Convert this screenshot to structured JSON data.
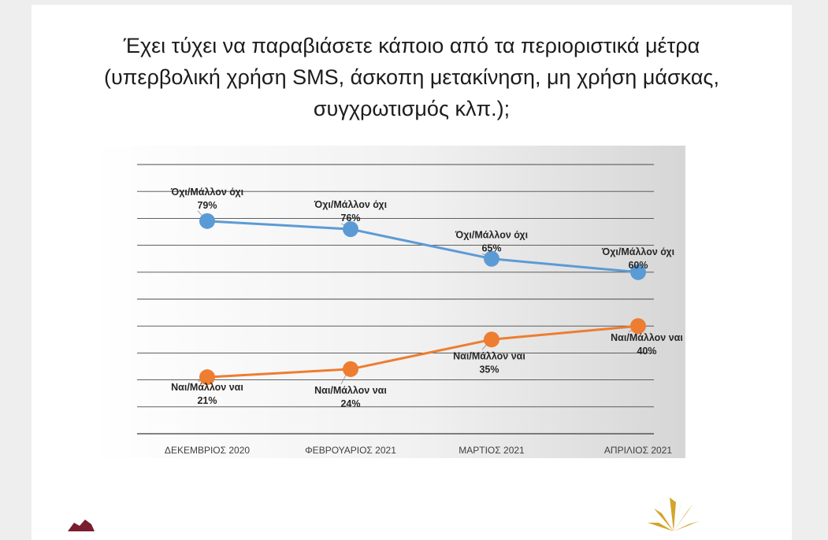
{
  "page": {
    "title_lines": [
      "Έχει τύχει να παραβιάσετε κάποιο από τα περιοριστικά μέτρα",
      "(υπερβολική χρήση SMS, άσκοπη μετακίνηση, μη χρήση μάσκας,",
      "συγχρωτισμός κλπ.);"
    ]
  },
  "colors": {
    "series_no": "#5b9bd5",
    "series_yes": "#ed7d31",
    "plot_bg_light": "#ffffff",
    "plot_bg_dark": "#d6d6d6"
  },
  "chart_data": {
    "type": "line",
    "title": "",
    "xlabel": "",
    "ylabel": "",
    "categories": [
      "ΔΕΚΕΜΒΡΙΟΣ 2020",
      "ΦΕΒΡΟΥΑΡΙΟΣ 2021",
      "ΜΑΡΤΙΟΣ 2021",
      "ΑΠΡΙΛΙΟΣ 2021"
    ],
    "ylim": [
      0,
      100
    ],
    "grid": true,
    "legend": "none",
    "series": [
      {
        "name": "Όχι/Μάλλον όχι",
        "color": "#5b9bd5",
        "values": [
          79,
          76,
          65,
          60
        ],
        "labels": [
          "79%",
          "76%",
          "65%",
          "60%"
        ]
      },
      {
        "name": "Ναι/Μάλλον ναι",
        "color": "#ed7d31",
        "values": [
          21,
          24,
          35,
          40
        ],
        "labels": [
          "21%",
          "24%",
          "35%",
          "40%"
        ]
      }
    ]
  },
  "logos": {
    "left": "red-logo-icon",
    "right": "gold-sun-logo-icon"
  }
}
